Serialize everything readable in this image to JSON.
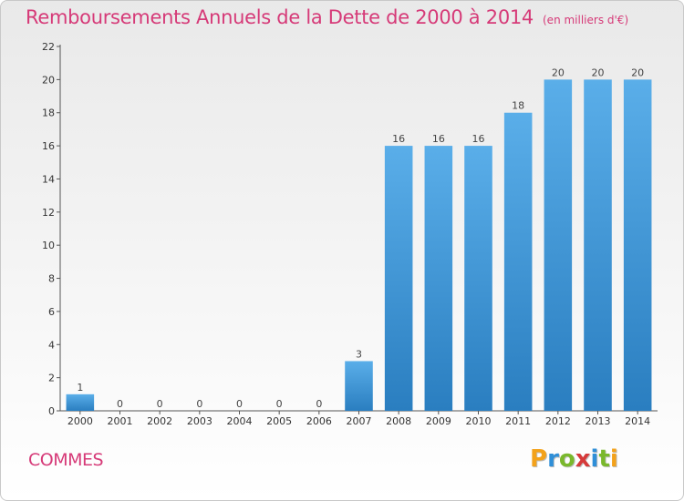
{
  "title": "Remboursements Annuels de la Dette de 2000 à 2014",
  "subtitle": "(en milliers d'€)",
  "place_name": "COMMES",
  "logo": {
    "text": "Proxiti",
    "letters": [
      "P",
      "r",
      "o",
      "x",
      "i",
      "t",
      "i"
    ],
    "letter_colors": [
      "#f3a21b",
      "#2f8fd8",
      "#7ab82c",
      "#d63a3a",
      "#2f8fd8",
      "#7ab82c",
      "#f3a21b"
    ]
  },
  "colors": {
    "bar_top": "#5aaee9",
    "bar_bottom": "#2a7ec0",
    "axis": "#555555",
    "text_accent": "#d63a78"
  },
  "chart_data": {
    "type": "bar",
    "categories": [
      "2000",
      "2001",
      "2002",
      "2003",
      "2004",
      "2005",
      "2006",
      "2007",
      "2008",
      "2009",
      "2010",
      "2011",
      "2012",
      "2013",
      "2014"
    ],
    "values": [
      1,
      0,
      0,
      0,
      0,
      0,
      0,
      3,
      16,
      16,
      16,
      18,
      20,
      20,
      20
    ],
    "data_labels": [
      "1",
      "0",
      "0",
      "0",
      "0",
      "0",
      "0",
      "3",
      "16",
      "16",
      "16",
      "18",
      "20",
      "20",
      "20"
    ],
    "y_ticks": [
      0,
      2,
      4,
      6,
      8,
      10,
      12,
      14,
      16,
      18,
      20,
      22
    ],
    "ylim": [
      0,
      22
    ],
    "grid": false,
    "legend": "none"
  }
}
